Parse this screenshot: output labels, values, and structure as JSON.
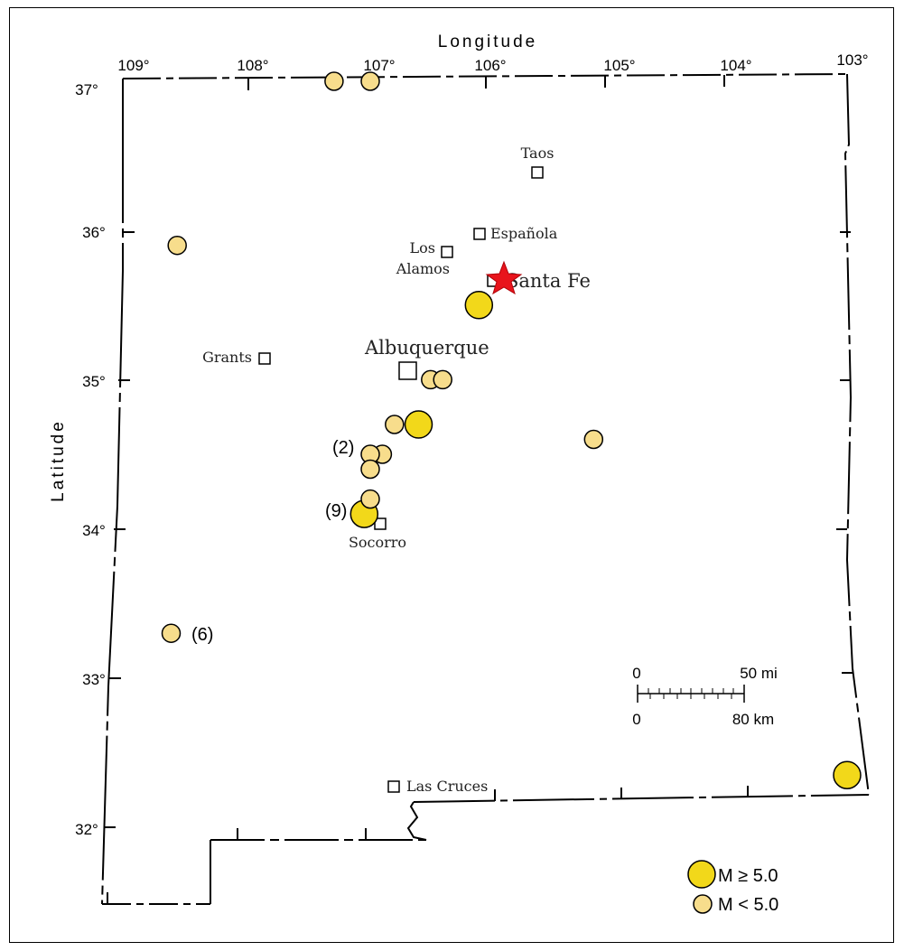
{
  "axes": {
    "x_title": "Longitude",
    "y_title": "Latitude",
    "longitude_ticks": [
      "109°",
      "108°",
      "107°",
      "106°",
      "105°",
      "104°",
      "103°"
    ],
    "latitude_ticks": [
      "37°",
      "36°",
      "35°",
      "34°",
      "33°",
      "32°"
    ]
  },
  "cities": [
    {
      "id": "taos",
      "label": "Taos"
    },
    {
      "id": "espanola",
      "label": "Española"
    },
    {
      "id": "los-alamos",
      "label_line1": "Los",
      "label_line2": "Alamos"
    },
    {
      "id": "santa-fe",
      "label": "Santa Fe"
    },
    {
      "id": "grants",
      "label": "Grants"
    },
    {
      "id": "albuquerque",
      "label": "Albuquerque"
    },
    {
      "id": "socorro",
      "label": "Socorro"
    },
    {
      "id": "las-cruces",
      "label": "Las Cruces"
    }
  ],
  "count_labels": {
    "cluster_2": "(2)",
    "cluster_9": "(9)",
    "cluster_6": "(6)"
  },
  "earthquakes": {
    "large": [
      {
        "lon": -106.05,
        "lat": 35.5
      },
      {
        "lon": -106.55,
        "lat": 34.7
      },
      {
        "lon": -107.0,
        "lat": 34.1
      },
      {
        "lon": -103.0,
        "lat": 32.35
      }
    ],
    "small": [
      {
        "lon": -107.25,
        "lat": 37.0
      },
      {
        "lon": -106.95,
        "lat": 37.0
      },
      {
        "lon": -108.55,
        "lat": 35.9
      },
      {
        "lon": -106.45,
        "lat": 35.0
      },
      {
        "lon": -106.35,
        "lat": 35.0
      },
      {
        "lon": -106.75,
        "lat": 34.7
      },
      {
        "lon": -106.85,
        "lat": 34.5
      },
      {
        "lon": -106.95,
        "lat": 34.5
      },
      {
        "lon": -106.95,
        "lat": 34.4
      },
      {
        "lon": -106.95,
        "lat": 34.2
      },
      {
        "lon": -105.1,
        "lat": 34.6
      },
      {
        "lon": -108.6,
        "lat": 33.3
      }
    ]
  },
  "scale_bar": {
    "top_zero": "0",
    "top_end": "50 mi",
    "bottom_zero": "0",
    "bottom_end": "80 km"
  },
  "legend": {
    "large_label": "M ≥ 5.0",
    "small_label": "M < 5.0"
  },
  "colors": {
    "large_fill": "#f2d81a",
    "small_fill": "#f7dd8c",
    "star": "#e8141c",
    "outline": "#000000"
  }
}
